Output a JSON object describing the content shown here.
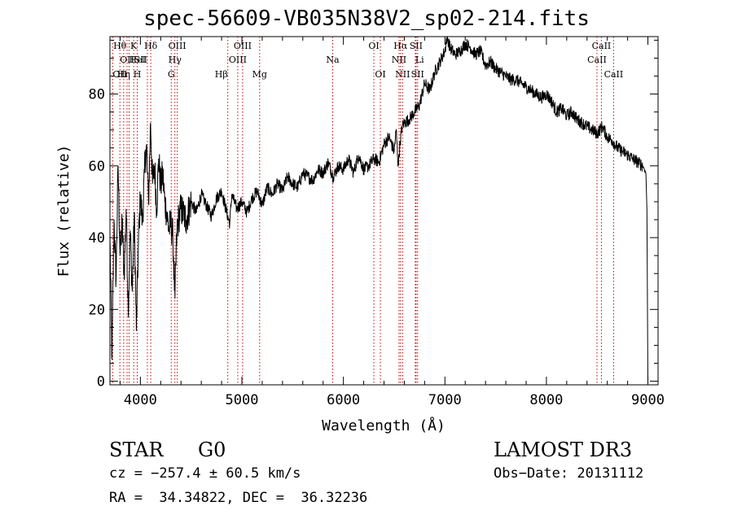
{
  "chart_data": {
    "type": "line",
    "title": "spec-56609-VB035N38V2_sp02-214.fits",
    "xlabel": "Wavelength (Å)",
    "ylabel": "Flux (relative)",
    "xlim": [
      3700,
      9100
    ],
    "ylim": [
      -1,
      96
    ],
    "xticks": [
      4000,
      5000,
      6000,
      7000,
      8000,
      9000
    ],
    "yticks": [
      0,
      20,
      40,
      60,
      80
    ],
    "grid": false,
    "series": [
      {
        "name": "spectrum",
        "x": [
          3700,
          3720,
          3740,
          3760,
          3780,
          3800,
          3820,
          3840,
          3860,
          3880,
          3900,
          3920,
          3940,
          3960,
          3980,
          4000,
          4020,
          4040,
          4060,
          4080,
          4100,
          4120,
          4140,
          4160,
          4180,
          4200,
          4220,
          4240,
          4260,
          4280,
          4300,
          4320,
          4340,
          4360,
          4380,
          4400,
          4450,
          4500,
          4550,
          4600,
          4650,
          4700,
          4750,
          4800,
          4850,
          4880,
          4900,
          4950,
          5000,
          5050,
          5100,
          5150,
          5200,
          5250,
          5300,
          5350,
          5400,
          5450,
          5500,
          5550,
          5600,
          5650,
          5700,
          5750,
          5800,
          5850,
          5900,
          5950,
          6000,
          6050,
          6100,
          6150,
          6200,
          6250,
          6300,
          6350,
          6400,
          6450,
          6500,
          6520,
          6540,
          6560,
          6580,
          6600,
          6650,
          6700,
          6750,
          6800,
          6850,
          6900,
          6950,
          7000,
          7020,
          7050,
          7100,
          7150,
          7200,
          7250,
          7300,
          7350,
          7400,
          7450,
          7500,
          7550,
          7600,
          7650,
          7700,
          7750,
          7800,
          7850,
          7900,
          7950,
          8000,
          8050,
          8100,
          8150,
          8200,
          8250,
          8300,
          8350,
          8400,
          8450,
          8500,
          8550,
          8600,
          8650,
          8700,
          8750,
          8800,
          8850,
          8900,
          8950,
          8980,
          8990,
          9000
        ],
        "values": [
          40,
          6,
          45,
          28,
          60,
          35,
          44,
          30,
          48,
          20,
          42,
          25,
          47,
          14,
          38,
          52,
          44,
          58,
          66,
          50,
          72,
          55,
          60,
          48,
          62,
          54,
          58,
          50,
          47,
          42,
          44,
          40,
          23,
          42,
          46,
          48,
          45,
          50,
          47,
          52,
          49,
          46,
          51,
          53,
          47,
          44,
          52,
          48,
          50,
          47,
          51,
          53,
          49,
          54,
          52,
          55,
          53,
          57,
          55,
          54,
          58,
          57,
          56,
          59,
          58,
          61,
          57,
          60,
          59,
          62,
          58,
          63,
          59,
          60,
          62,
          61,
          66,
          68,
          64,
          70,
          60,
          67,
          71,
          72,
          73,
          75,
          77,
          83,
          81,
          86,
          89,
          92,
          96,
          93,
          91,
          92,
          94,
          93,
          91,
          92,
          88,
          89,
          87,
          86,
          85,
          84,
          84,
          83,
          82,
          81,
          80,
          79,
          80,
          78,
          75,
          76,
          74,
          75,
          73,
          72,
          71,
          70,
          69,
          71,
          68,
          67,
          65,
          64,
          63,
          62,
          61,
          60,
          58,
          48,
          0
        ]
      }
    ],
    "line_markers": [
      {
        "label": "OII",
        "x": 3727,
        "row": 2,
        "anchor": "start"
      },
      {
        "label": "Hθ",
        "x": 3798,
        "row": 0,
        "anchor": "middle"
      },
      {
        "label": "Hη",
        "x": 3835,
        "row": 2,
        "anchor": "middle"
      },
      {
        "label": "OII",
        "x": 3869,
        "row": 1,
        "anchor": "middle"
      },
      {
        "label": "HeI",
        "x": 3889,
        "row": 1,
        "anchor": "start"
      },
      {
        "label": "K",
        "x": 3934,
        "row": 0,
        "anchor": "middle"
      },
      {
        "label": "SII",
        "x": 4069,
        "row": 1,
        "anchor": "end"
      },
      {
        "label": "H",
        "x": 3969,
        "row": 2,
        "anchor": "middle"
      },
      {
        "label": "Hδ",
        "x": 4102,
        "row": 0,
        "anchor": "middle"
      },
      {
        "label": "OIII",
        "x": 4363,
        "row": 0,
        "anchor": "middle"
      },
      {
        "label": "Hγ",
        "x": 4340,
        "row": 1,
        "anchor": "middle"
      },
      {
        "label": "G",
        "x": 4304,
        "row": 2,
        "anchor": "middle"
      },
      {
        "label": "Hβ",
        "x": 4861,
        "row": 2,
        "anchor": "end"
      },
      {
        "label": "OIII",
        "x": 4959,
        "row": 1,
        "anchor": "middle"
      },
      {
        "label": "OIII",
        "x": 5007,
        "row": 0,
        "anchor": "middle"
      },
      {
        "label": "Mg",
        "x": 5175,
        "row": 2,
        "anchor": "middle"
      },
      {
        "label": "Na",
        "x": 5894,
        "row": 1,
        "anchor": "middle"
      },
      {
        "label": "OI",
        "x": 6300,
        "row": 0,
        "anchor": "middle"
      },
      {
        "label": "OI",
        "x": 6364,
        "row": 2,
        "anchor": "middle"
      },
      {
        "label": "Hα",
        "x": 6563,
        "row": 0,
        "anchor": "middle"
      },
      {
        "label": "NII",
        "x": 6548,
        "row": 1,
        "anchor": "middle"
      },
      {
        "label": "NII",
        "x": 6583,
        "row": 2,
        "anchor": "middle"
      },
      {
        "label": "SII",
        "x": 6716,
        "row": 0,
        "anchor": "middle"
      },
      {
        "label": "Li",
        "x": 6708,
        "row": 1,
        "anchor": "start"
      },
      {
        "label": "SII",
        "x": 6731,
        "row": 2,
        "anchor": "middle"
      },
      {
        "label": "CaII",
        "x": 8498,
        "row": 1,
        "anchor": "middle"
      },
      {
        "label": "CaII",
        "x": 8542,
        "row": 0,
        "anchor": "middle"
      },
      {
        "label": "CaII",
        "x": 8662,
        "row": 2,
        "anchor": "middle"
      }
    ]
  },
  "info": {
    "object_class": "STAR",
    "subclass": "G0",
    "survey": "LAMOST DR3",
    "redshift_line": "cz = −257.4 ± 60.5 km/s",
    "obs_date_line": "Obs−Date: 20131112",
    "coords_line": "RA =  34.34822, DEC =  36.32236"
  },
  "colors": {
    "spectrum": "#000000",
    "marker_line": "#cc0000",
    "axis": "#000000"
  }
}
